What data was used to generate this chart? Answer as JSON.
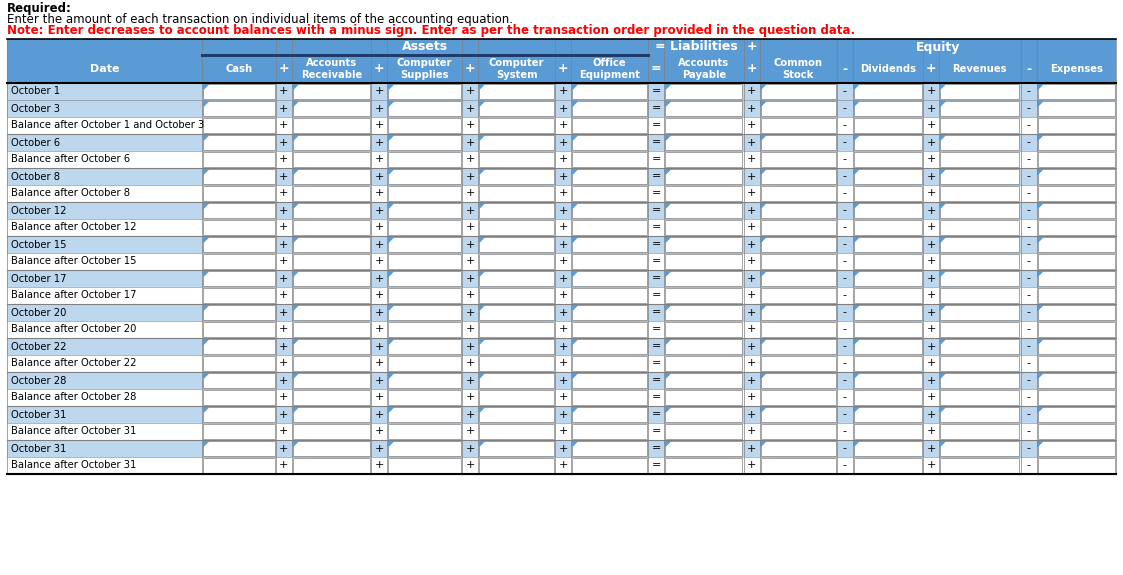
{
  "title_line1": "Required:",
  "title_line2": "Enter the amount of each transaction on individual items of the accounting equation.",
  "title_line3": "Note: Enter decreases to account balances with a minus sign. Enter as per the transaction order provided in the question data.",
  "header_bg": "#5B9BD5",
  "row_bg_transaction": "#BDD7EE",
  "row_bg_balance": "#FFFFFF",
  "rows": [
    {
      "label": "October 1",
      "is_transaction": true
    },
    {
      "label": "October 3",
      "is_transaction": true
    },
    {
      "label": "Balance after October 1 and October 3",
      "is_transaction": false
    },
    {
      "label": "October 6",
      "is_transaction": true
    },
    {
      "label": "Balance after October 6",
      "is_transaction": false
    },
    {
      "label": "October 8",
      "is_transaction": true
    },
    {
      "label": "Balance after October 8",
      "is_transaction": false
    },
    {
      "label": "October 12",
      "is_transaction": true
    },
    {
      "label": "Balance after October 12",
      "is_transaction": false
    },
    {
      "label": "October 15",
      "is_transaction": true
    },
    {
      "label": "Balance after October 15",
      "is_transaction": false
    },
    {
      "label": "October 17",
      "is_transaction": true
    },
    {
      "label": "Balance after October 17",
      "is_transaction": false
    },
    {
      "label": "October 20",
      "is_transaction": true
    },
    {
      "label": "Balance after October 20",
      "is_transaction": false
    },
    {
      "label": "October 22",
      "is_transaction": true
    },
    {
      "label": "Balance after October 22",
      "is_transaction": false
    },
    {
      "label": "October 28",
      "is_transaction": true
    },
    {
      "label": "Balance after October 28",
      "is_transaction": false
    },
    {
      "label": "October 31",
      "is_transaction": true
    },
    {
      "label": "Balance after October 31",
      "is_transaction": false
    },
    {
      "label": "October 31",
      "is_transaction": true
    },
    {
      "label": "Balance after October 31",
      "is_transaction": false
    }
  ],
  "figsize": [
    11.23,
    5.75
  ],
  "dpi": 100
}
